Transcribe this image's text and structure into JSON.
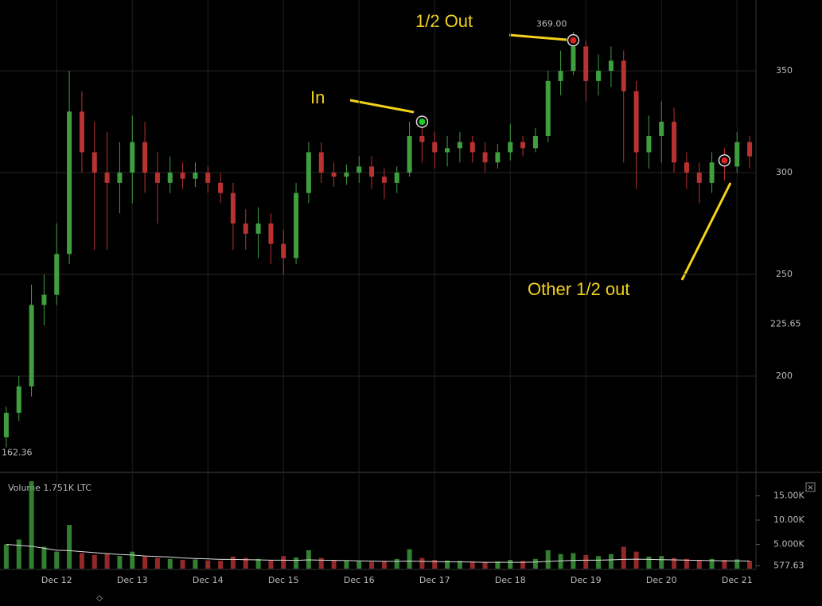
{
  "chart_data": {
    "type": "candlestick",
    "categories": [
      null,
      null,
      null,
      null,
      "Dec 12",
      null,
      null,
      null,
      null,
      null,
      "Dec 13",
      null,
      null,
      null,
      null,
      null,
      "Dec 14",
      null,
      null,
      null,
      null,
      null,
      "Dec 15",
      null,
      null,
      null,
      null,
      null,
      "Dec 16",
      null,
      null,
      null,
      null,
      null,
      "Dec 17",
      null,
      null,
      null,
      null,
      null,
      "Dec 18",
      null,
      null,
      null,
      null,
      null,
      "Dec 19",
      null,
      null,
      null,
      null,
      null,
      "Dec 20",
      null,
      null,
      null,
      null,
      null,
      "Dec 21",
      null
    ],
    "candles": [
      {
        "o": 170,
        "h": 185,
        "l": 165,
        "c": 182
      },
      {
        "o": 182,
        "h": 200,
        "l": 178,
        "c": 195
      },
      {
        "o": 195,
        "h": 245,
        "l": 190,
        "c": 235
      },
      {
        "o": 235,
        "h": 250,
        "l": 225,
        "c": 240
      },
      {
        "o": 240,
        "h": 275,
        "l": 235,
        "c": 260
      },
      {
        "o": 260,
        "h": 350,
        "l": 255,
        "c": 330
      },
      {
        "o": 330,
        "h": 340,
        "l": 300,
        "c": 310
      },
      {
        "o": 310,
        "h": 325,
        "l": 262,
        "c": 300
      },
      {
        "o": 300,
        "h": 320,
        "l": 262,
        "c": 295
      },
      {
        "o": 295,
        "h": 315,
        "l": 280,
        "c": 300
      },
      {
        "o": 300,
        "h": 328,
        "l": 285,
        "c": 315
      },
      {
        "o": 315,
        "h": 325,
        "l": 290,
        "c": 300
      },
      {
        "o": 300,
        "h": 310,
        "l": 275,
        "c": 295
      },
      {
        "o": 295,
        "h": 308,
        "l": 290,
        "c": 300
      },
      {
        "o": 300,
        "h": 305,
        "l": 292,
        "c": 297
      },
      {
        "o": 297,
        "h": 305,
        "l": 293,
        "c": 300
      },
      {
        "o": 300,
        "h": 303,
        "l": 290,
        "c": 295
      },
      {
        "o": 295,
        "h": 300,
        "l": 285,
        "c": 290
      },
      {
        "o": 290,
        "h": 295,
        "l": 262,
        "c": 275
      },
      {
        "o": 275,
        "h": 282,
        "l": 262,
        "c": 270
      },
      {
        "o": 270,
        "h": 283,
        "l": 258,
        "c": 275
      },
      {
        "o": 275,
        "h": 280,
        "l": 255,
        "c": 265
      },
      {
        "o": 265,
        "h": 272,
        "l": 250,
        "c": 258
      },
      {
        "o": 258,
        "h": 295,
        "l": 255,
        "c": 290
      },
      {
        "o": 290,
        "h": 315,
        "l": 285,
        "c": 310
      },
      {
        "o": 310,
        "h": 315,
        "l": 295,
        "c": 300
      },
      {
        "o": 300,
        "h": 305,
        "l": 293,
        "c": 298
      },
      {
        "o": 298,
        "h": 304,
        "l": 294,
        "c": 300
      },
      {
        "o": 300,
        "h": 308,
        "l": 295,
        "c": 303
      },
      {
        "o": 303,
        "h": 308,
        "l": 292,
        "c": 298
      },
      {
        "o": 298,
        "h": 302,
        "l": 287,
        "c": 295
      },
      {
        "o": 295,
        "h": 303,
        "l": 290,
        "c": 300
      },
      {
        "o": 300,
        "h": 325,
        "l": 298,
        "c": 318
      },
      {
        "o": 318,
        "h": 322,
        "l": 305,
        "c": 315
      },
      {
        "o": 315,
        "h": 320,
        "l": 302,
        "c": 310
      },
      {
        "o": 310,
        "h": 318,
        "l": 303,
        "c": 312
      },
      {
        "o": 312,
        "h": 320,
        "l": 305,
        "c": 315
      },
      {
        "o": 315,
        "h": 318,
        "l": 305,
        "c": 310
      },
      {
        "o": 310,
        "h": 315,
        "l": 300,
        "c": 305
      },
      {
        "o": 305,
        "h": 314,
        "l": 302,
        "c": 310
      },
      {
        "o": 310,
        "h": 324,
        "l": 306,
        "c": 315
      },
      {
        "o": 315,
        "h": 318,
        "l": 308,
        "c": 312
      },
      {
        "o": 312,
        "h": 322,
        "l": 310,
        "c": 318
      },
      {
        "o": 318,
        "h": 350,
        "l": 315,
        "c": 345
      },
      {
        "o": 345,
        "h": 360,
        "l": 338,
        "c": 350
      },
      {
        "o": 350,
        "h": 369,
        "l": 348,
        "c": 362
      },
      {
        "o": 362,
        "h": 365,
        "l": 335,
        "c": 345
      },
      {
        "o": 345,
        "h": 358,
        "l": 338,
        "c": 350
      },
      {
        "o": 350,
        "h": 362,
        "l": 342,
        "c": 355
      },
      {
        "o": 355,
        "h": 360,
        "l": 305,
        "c": 340
      },
      {
        "o": 340,
        "h": 345,
        "l": 292,
        "c": 310
      },
      {
        "o": 310,
        "h": 328,
        "l": 302,
        "c": 318
      },
      {
        "o": 318,
        "h": 335,
        "l": 305,
        "c": 325
      },
      {
        "o": 325,
        "h": 332,
        "l": 300,
        "c": 305
      },
      {
        "o": 305,
        "h": 310,
        "l": 292,
        "c": 300
      },
      {
        "o": 300,
        "h": 305,
        "l": 285,
        "c": 295
      },
      {
        "o": 295,
        "h": 310,
        "l": 290,
        "c": 305
      },
      {
        "o": 305,
        "h": 312,
        "l": 296,
        "c": 303
      },
      {
        "o": 303,
        "h": 320,
        "l": 300,
        "c": 315
      },
      {
        "o": 315,
        "h": 318,
        "l": 302,
        "c": 308
      }
    ],
    "ylim": [
      154.3,
      384.8
    ],
    "yticks": [
      200,
      250,
      300,
      350
    ],
    "price_labels": [
      225.65,
      162.36,
      {
        "value": 369,
        "label": "369.00"
      }
    ],
    "up_color": "#3f9f3f",
    "down_color": "#b83232",
    "volume": {
      "title": "Volume 1.751K LTC",
      "values": [
        5000,
        6000,
        18000,
        4500,
        3500,
        9000,
        3200,
        2800,
        3000,
        2600,
        3500,
        2500,
        2200,
        2000,
        1800,
        1900,
        1700,
        1600,
        2500,
        2200,
        2000,
        1800,
        2600,
        2300,
        3800,
        2200,
        1800,
        1600,
        1500,
        1400,
        1600,
        2000,
        4000,
        2200,
        1800,
        1700,
        1600,
        1500,
        1400,
        1500,
        1800,
        1600,
        2000,
        3800,
        3000,
        3200,
        2800,
        2600,
        3000,
        4500,
        3500,
        2500,
        2600,
        2200,
        2000,
        1800,
        2000,
        1800,
        1900,
        1600
      ],
      "ma": [
        5000,
        4800,
        4600,
        4200,
        3800,
        3700,
        3500,
        3300,
        3100,
        2900,
        2800,
        2600,
        2500,
        2400,
        2200,
        2100,
        2000,
        1900,
        1900,
        1850,
        1800,
        1750,
        1750,
        1700,
        1800,
        1750,
        1700,
        1650,
        1600,
        1550,
        1500,
        1500,
        1550,
        1500,
        1450,
        1400,
        1400,
        1350,
        1300,
        1300,
        1300,
        1300,
        1350,
        1500,
        1600,
        1700,
        1750,
        1750,
        1800,
        1900,
        1950,
        1900,
        1850,
        1800,
        1750,
        1700,
        1650,
        1600,
        1600,
        1550
      ],
      "ylim": [
        0,
        19180
      ],
      "yticks": [
        {
          "value": 15000,
          "label": "15.00K"
        },
        {
          "value": 10000,
          "label": "10.00K"
        },
        {
          "value": 5000,
          "label": "5.000K"
        },
        577.63
      ]
    },
    "annotations": [
      {
        "text": "In",
        "index": 33,
        "price": 325,
        "color": "#22cc22"
      },
      {
        "text": "1/2 Out",
        "index": 45,
        "price": 365,
        "color": "#dd2222"
      },
      {
        "text": "Other 1/2 out",
        "index": 57,
        "price": 306,
        "color": "#dd2222"
      }
    ]
  }
}
